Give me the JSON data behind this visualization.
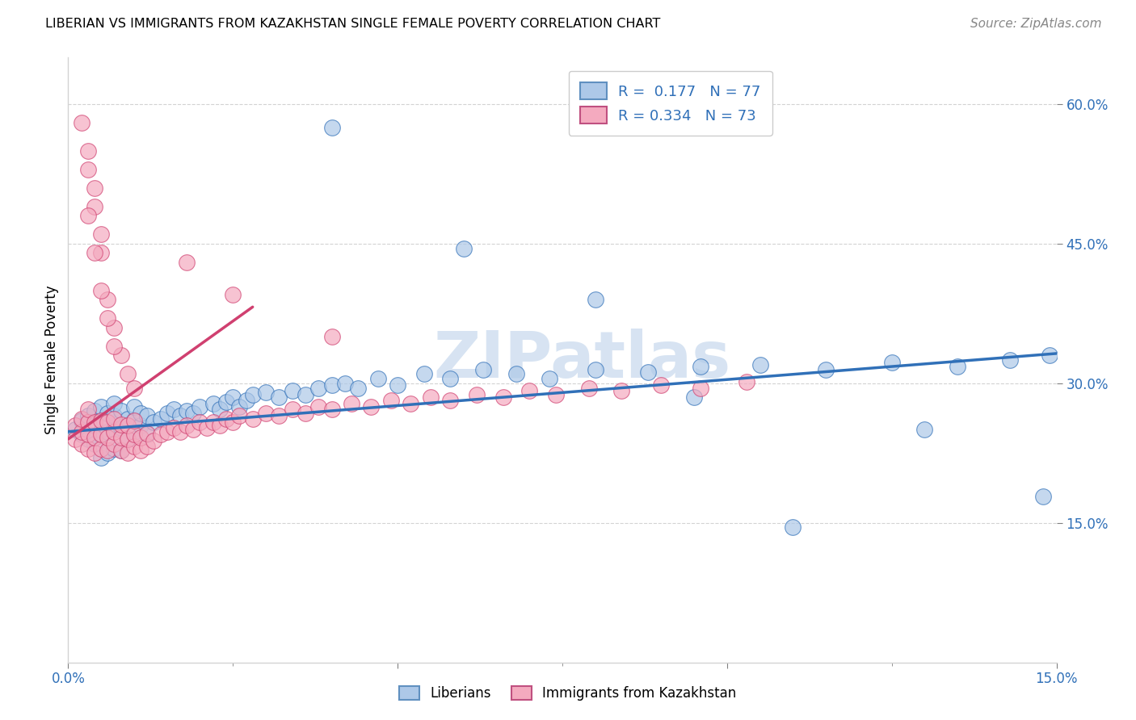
{
  "title": "LIBERIAN VS IMMIGRANTS FROM KAZAKHSTAN SINGLE FEMALE POVERTY CORRELATION CHART",
  "source": "Source: ZipAtlas.com",
  "ylabel": "Single Female Poverty",
  "xlim": [
    0.0,
    0.15
  ],
  "ylim": [
    0.0,
    0.65
  ],
  "y_ticks": [
    0.15,
    0.3,
    0.45,
    0.6
  ],
  "y_tick_labels": [
    "15.0%",
    "30.0%",
    "45.0%",
    "60.0%"
  ],
  "x_ticks": [
    0.0,
    0.05,
    0.1,
    0.15
  ],
  "x_tick_labels": [
    "0.0%",
    "",
    "",
    "15.0%"
  ],
  "legend_r1": "R =  0.177   N = 77",
  "legend_r2": "R = 0.334   N = 73",
  "color_blue": "#adc8e8",
  "color_pink": "#f4aabf",
  "trend_blue": "#3070b8",
  "trend_pink": "#d04070",
  "watermark": "ZIPatlas",
  "blue_x": [
    0.001,
    0.002,
    0.002,
    0.003,
    0.003,
    0.004,
    0.004,
    0.004,
    0.005,
    0.005,
    0.005,
    0.005,
    0.006,
    0.006,
    0.006,
    0.007,
    0.007,
    0.007,
    0.007,
    0.008,
    0.008,
    0.008,
    0.009,
    0.009,
    0.01,
    0.01,
    0.01,
    0.011,
    0.011,
    0.012,
    0.012,
    0.013,
    0.014,
    0.015,
    0.016,
    0.017,
    0.018,
    0.019,
    0.02,
    0.022,
    0.023,
    0.024,
    0.025,
    0.026,
    0.027,
    0.028,
    0.03,
    0.032,
    0.034,
    0.036,
    0.038,
    0.04,
    0.042,
    0.044,
    0.047,
    0.05,
    0.054,
    0.058,
    0.063,
    0.068,
    0.073,
    0.08,
    0.088,
    0.096,
    0.105,
    0.115,
    0.125,
    0.135,
    0.143,
    0.149,
    0.04,
    0.06,
    0.08,
    0.095,
    0.11,
    0.13,
    0.148
  ],
  "blue_y": [
    0.25,
    0.245,
    0.26,
    0.24,
    0.265,
    0.235,
    0.255,
    0.27,
    0.22,
    0.245,
    0.26,
    0.275,
    0.225,
    0.248,
    0.268,
    0.23,
    0.25,
    0.265,
    0.278,
    0.228,
    0.252,
    0.27,
    0.24,
    0.262,
    0.248,
    0.26,
    0.275,
    0.255,
    0.268,
    0.245,
    0.265,
    0.258,
    0.262,
    0.268,
    0.272,
    0.265,
    0.27,
    0.268,
    0.275,
    0.278,
    0.272,
    0.28,
    0.285,
    0.275,
    0.282,
    0.288,
    0.29,
    0.285,
    0.292,
    0.288,
    0.295,
    0.298,
    0.3,
    0.295,
    0.305,
    0.298,
    0.31,
    0.305,
    0.315,
    0.31,
    0.305,
    0.315,
    0.312,
    0.318,
    0.32,
    0.315,
    0.322,
    0.318,
    0.325,
    0.33,
    0.575,
    0.445,
    0.39,
    0.285,
    0.145,
    0.25,
    0.178
  ],
  "pink_x": [
    0.001,
    0.001,
    0.002,
    0.002,
    0.002,
    0.003,
    0.003,
    0.003,
    0.003,
    0.004,
    0.004,
    0.004,
    0.005,
    0.005,
    0.005,
    0.006,
    0.006,
    0.006,
    0.007,
    0.007,
    0.007,
    0.008,
    0.008,
    0.008,
    0.009,
    0.009,
    0.009,
    0.01,
    0.01,
    0.01,
    0.011,
    0.011,
    0.012,
    0.012,
    0.013,
    0.014,
    0.015,
    0.016,
    0.017,
    0.018,
    0.019,
    0.02,
    0.021,
    0.022,
    0.023,
    0.024,
    0.025,
    0.026,
    0.028,
    0.03,
    0.032,
    0.034,
    0.036,
    0.038,
    0.04,
    0.043,
    0.046,
    0.049,
    0.052,
    0.055,
    0.058,
    0.062,
    0.066,
    0.07,
    0.074,
    0.079,
    0.084,
    0.09,
    0.096,
    0.103,
    0.04,
    0.025,
    0.018
  ],
  "pink_y": [
    0.24,
    0.255,
    0.235,
    0.248,
    0.262,
    0.23,
    0.245,
    0.258,
    0.272,
    0.225,
    0.242,
    0.258,
    0.23,
    0.245,
    0.26,
    0.228,
    0.242,
    0.258,
    0.235,
    0.248,
    0.262,
    0.228,
    0.242,
    0.256,
    0.225,
    0.24,
    0.255,
    0.232,
    0.245,
    0.26,
    0.228,
    0.242,
    0.232,
    0.246,
    0.238,
    0.245,
    0.248,
    0.252,
    0.248,
    0.255,
    0.25,
    0.258,
    0.252,
    0.258,
    0.255,
    0.262,
    0.258,
    0.265,
    0.262,
    0.268,
    0.265,
    0.272,
    0.268,
    0.275,
    0.272,
    0.278,
    0.275,
    0.282,
    0.278,
    0.285,
    0.282,
    0.288,
    0.285,
    0.292,
    0.288,
    0.295,
    0.292,
    0.298,
    0.295,
    0.302,
    0.35,
    0.395,
    0.43
  ],
  "pink_high_x": [
    0.003,
    0.004,
    0.005,
    0.006,
    0.007,
    0.008,
    0.009,
    0.01,
    0.003,
    0.004,
    0.005,
    0.006,
    0.007,
    0.002,
    0.003,
    0.004,
    0.005
  ],
  "pink_high_y": [
    0.53,
    0.49,
    0.44,
    0.39,
    0.36,
    0.33,
    0.31,
    0.295,
    0.48,
    0.44,
    0.4,
    0.37,
    0.34,
    0.58,
    0.55,
    0.51,
    0.46
  ],
  "trend_blue_x0": 0.0,
  "trend_blue_y0": 0.248,
  "trend_blue_x1": 0.15,
  "trend_blue_y1": 0.332,
  "trend_pink_x0": 0.0,
  "trend_pink_y0": 0.24,
  "trend_pink_x1": 0.028,
  "trend_pink_y1": 0.382
}
